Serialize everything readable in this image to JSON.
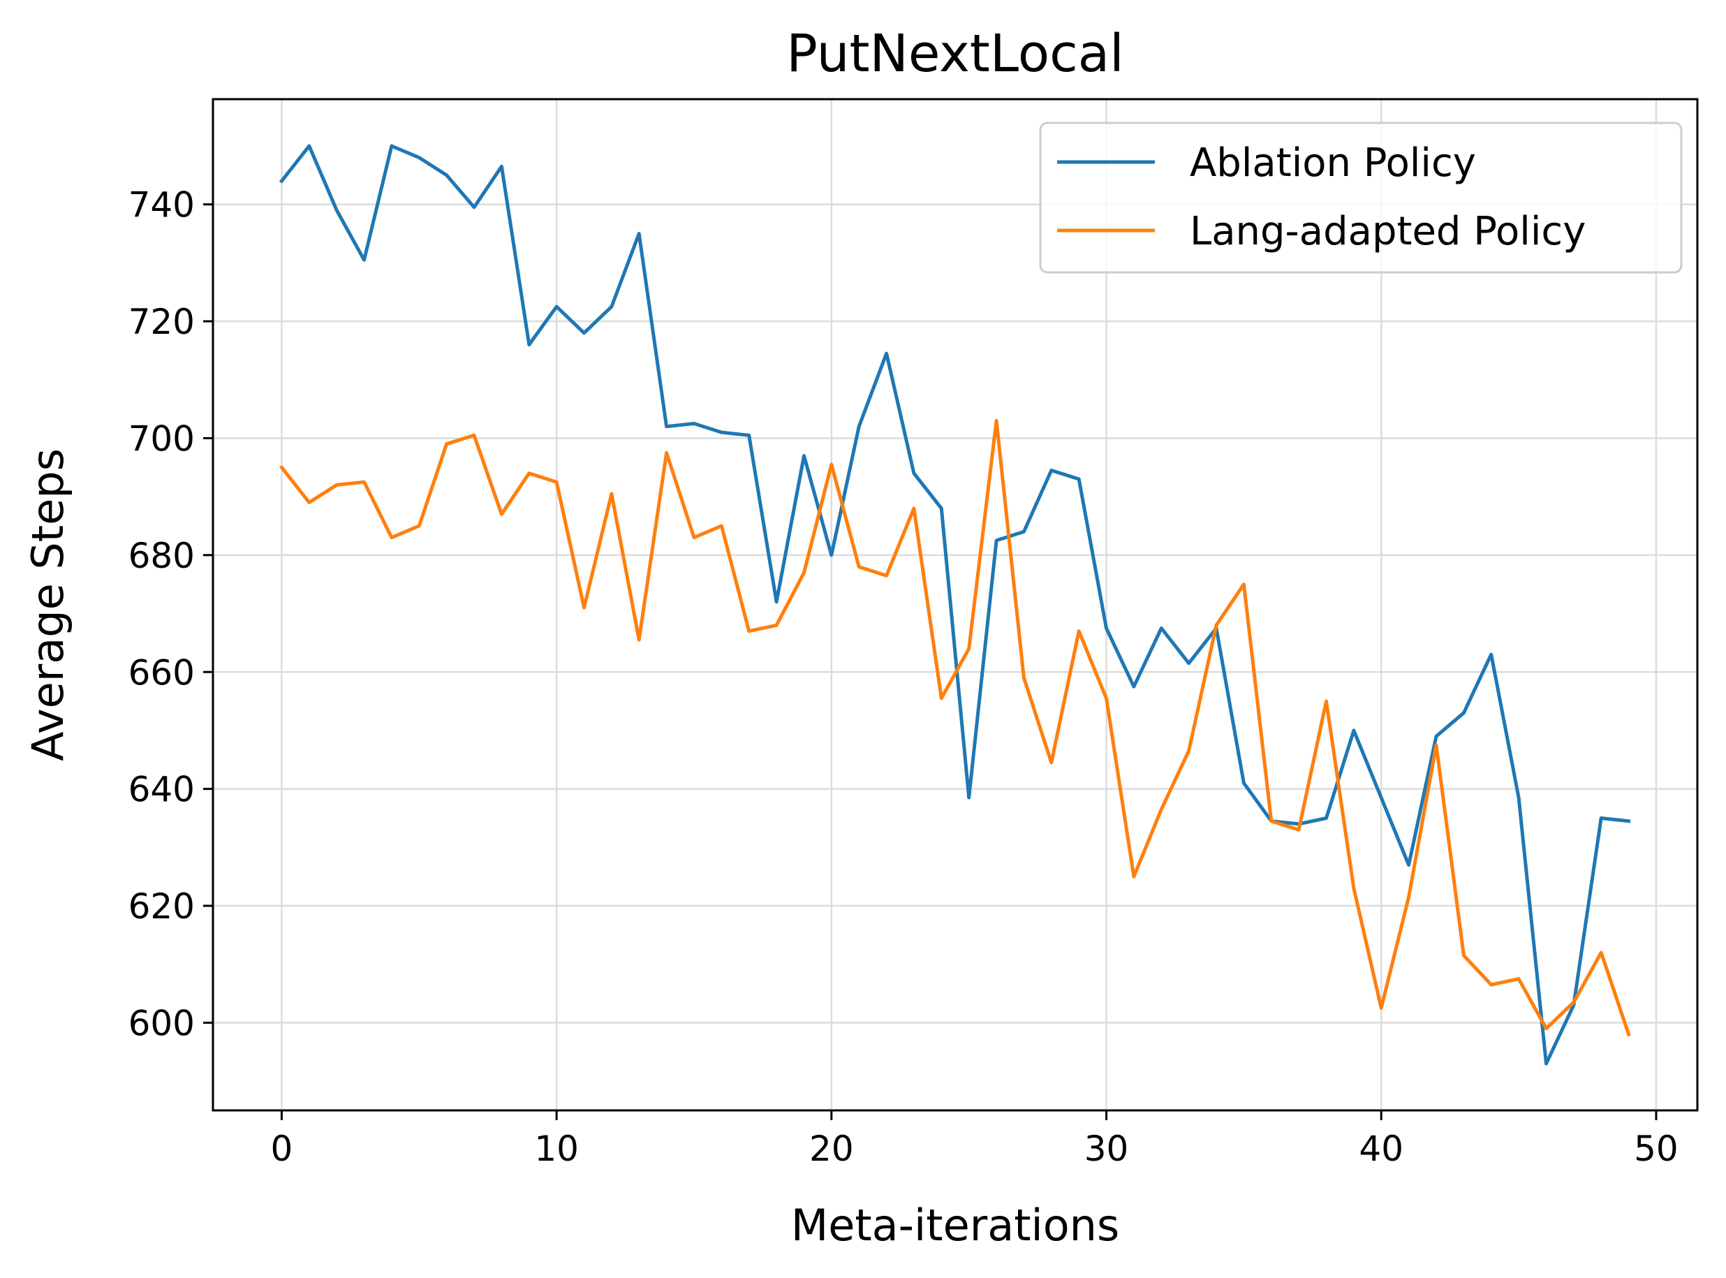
{
  "chart_data": {
    "type": "line",
    "title": "PutNextLocal",
    "xlabel": "Meta-iterations",
    "ylabel": "Average Steps",
    "xlim": [
      -2.5,
      51.5
    ],
    "ylim": [
      585,
      758
    ],
    "xticks": [
      0,
      10,
      20,
      30,
      40,
      50
    ],
    "yticks": [
      600,
      620,
      640,
      660,
      680,
      700,
      720,
      740
    ],
    "grid": true,
    "legend_position": "top-right",
    "x": [
      0,
      1,
      2,
      3,
      4,
      5,
      6,
      7,
      8,
      9,
      10,
      11,
      12,
      13,
      14,
      15,
      16,
      17,
      18,
      19,
      20,
      21,
      22,
      23,
      24,
      25,
      26,
      27,
      28,
      29,
      30,
      31,
      32,
      33,
      34,
      35,
      36,
      37,
      38,
      39,
      40,
      41,
      42,
      43,
      44,
      45,
      46,
      47,
      48,
      49
    ],
    "series": [
      {
        "name": "Ablation Policy",
        "color": "#1f77b4",
        "values": [
          744,
          750,
          739,
          730.5,
          750,
          748,
          745,
          739.5,
          746.5,
          716,
          722.5,
          718,
          722.5,
          735,
          702,
          702.5,
          701,
          700.5,
          672,
          697,
          680,
          702,
          714.5,
          694,
          688,
          638.5,
          682.5,
          684,
          694.5,
          693,
          667.5,
          657.5,
          667.5,
          661.5,
          667.5,
          641,
          634.5,
          634,
          635,
          650,
          638.5,
          627,
          649,
          653,
          663,
          638.5,
          593,
          603,
          635,
          634.5
        ]
      },
      {
        "name": "Lang-adapted Policy",
        "color": "#ff7f0e",
        "values": [
          695,
          689,
          692,
          692.5,
          683,
          685,
          699,
          700.5,
          687,
          694,
          692.5,
          671,
          690.5,
          665.5,
          697.5,
          683,
          685,
          667,
          668,
          677,
          695.5,
          678,
          676.5,
          688,
          655.5,
          664,
          703,
          659,
          644.5,
          667,
          655.5,
          625,
          636.5,
          646.5,
          668,
          675,
          634.5,
          633,
          655,
          623,
          602.5,
          621.5,
          647.5,
          611.5,
          606.5,
          607.5,
          599,
          603.5,
          612,
          598
        ]
      }
    ]
  }
}
